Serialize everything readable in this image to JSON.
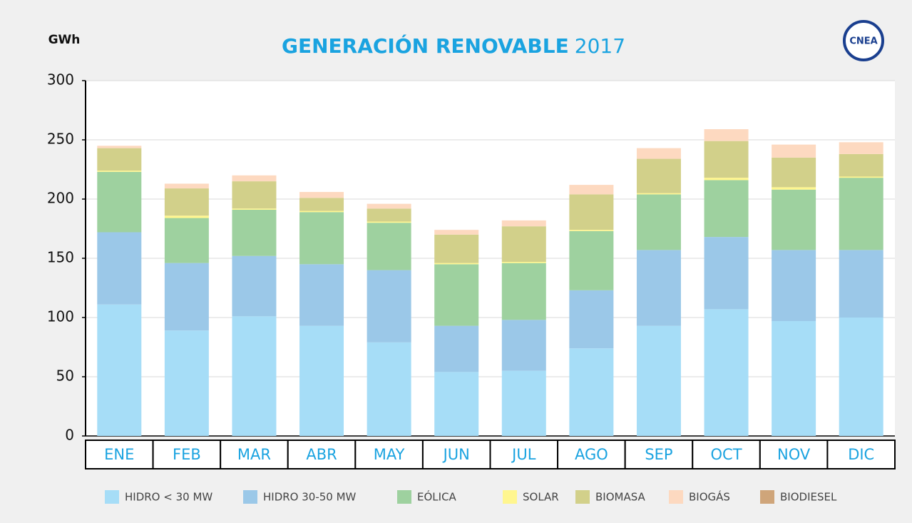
{
  "chart_data": {
    "type": "stacked_bar",
    "title": "GENERACIÓN RENOVABLE",
    "title_suffix": "2017",
    "y_label": "GWh",
    "logo": "CNEA",
    "categories": [
      "ENE",
      "FEB",
      "MAR",
      "ABR",
      "MAY",
      "JUN",
      "JUL",
      "AGO",
      "SEP",
      "OCT",
      "NOV",
      "DIC"
    ],
    "series": [
      {
        "name": "HIDRO < 30 MW",
        "color": "#a6ddf7",
        "values": [
          111,
          89,
          101,
          93,
          79,
          54,
          55,
          74,
          93,
          107,
          97,
          100
        ]
      },
      {
        "name": "HIDRO 30-50 MW",
        "color": "#9bc8e8",
        "values": [
          61,
          57,
          51,
          52,
          61,
          39,
          43,
          49,
          64,
          61,
          60,
          57
        ]
      },
      {
        "name": "EÓLICA",
        "color": "#9ed19f",
        "values": [
          51,
          38,
          39,
          44,
          40,
          52,
          48,
          50,
          47,
          48,
          51,
          61
        ]
      },
      {
        "name": "SOLAR",
        "color": "#fff68f",
        "values": [
          1,
          2,
          1,
          1,
          1,
          1,
          1,
          1,
          1,
          2,
          2,
          1
        ]
      },
      {
        "name": "BIOMASA",
        "color": "#d2d08a",
        "values": [
          19,
          23,
          23,
          11,
          11,
          24,
          30,
          30,
          29,
          31,
          25,
          19
        ]
      },
      {
        "name": "BIOGÁS",
        "color": "#fdd9c0",
        "values": [
          2,
          4,
          5,
          5,
          4,
          4,
          5,
          8,
          9,
          10,
          11,
          10
        ]
      },
      {
        "name": "BIODIESEL",
        "color": "#cfa57a",
        "values": [
          0,
          0,
          0,
          0,
          0,
          0,
          0,
          0,
          0,
          0,
          0,
          0
        ]
      }
    ],
    "ylim": [
      0,
      300
    ],
    "yticks": [
      0,
      50,
      100,
      150,
      200,
      250,
      300
    ],
    "grid": true
  }
}
